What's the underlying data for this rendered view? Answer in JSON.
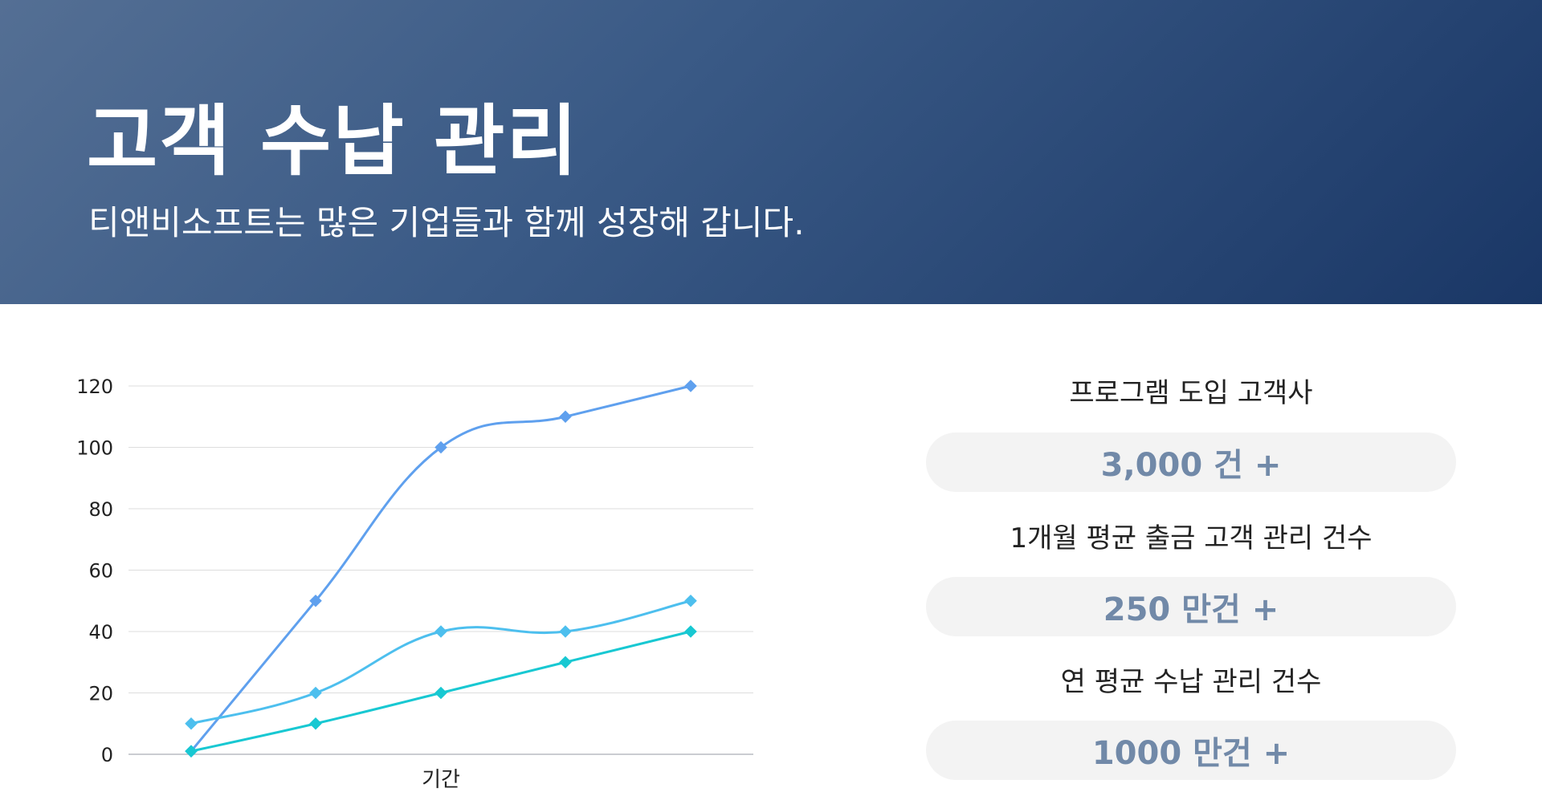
{
  "header": {
    "title": "고객 수납 관리",
    "subtitle": "티앤비소프트는 많은 기업들과 함께 성장해 갑니다."
  },
  "stats": [
    {
      "label": "프로그램 도입 고객사",
      "value": "3,000 건 +"
    },
    {
      "label": "1개월 평균 출금 고객 관리 건수",
      "value": "250 만건 +"
    },
    {
      "label": "연 평균 수납 관리 건수",
      "value": "1000 만건 +"
    }
  ],
  "colors": {
    "accent": "#7189a8",
    "pill_bg": "#f3f3f3"
  },
  "chart_data": {
    "type": "line",
    "title": "",
    "xlabel": "기간",
    "ylabel": "",
    "ylim": [
      0,
      120
    ],
    "yticks": [
      0,
      20,
      40,
      60,
      80,
      100,
      120
    ],
    "x": [
      1,
      2,
      3,
      4,
      5
    ],
    "grid": true,
    "legend": "none",
    "series": [
      {
        "color": "#5fa0ee",
        "values": [
          1,
          50,
          100,
          110,
          120
        ]
      },
      {
        "color": "#4dbfee",
        "values": [
          10,
          20,
          40,
          40,
          50
        ]
      },
      {
        "color": "#18c8d2",
        "values": [
          1,
          10,
          20,
          30,
          40
        ]
      }
    ]
  }
}
